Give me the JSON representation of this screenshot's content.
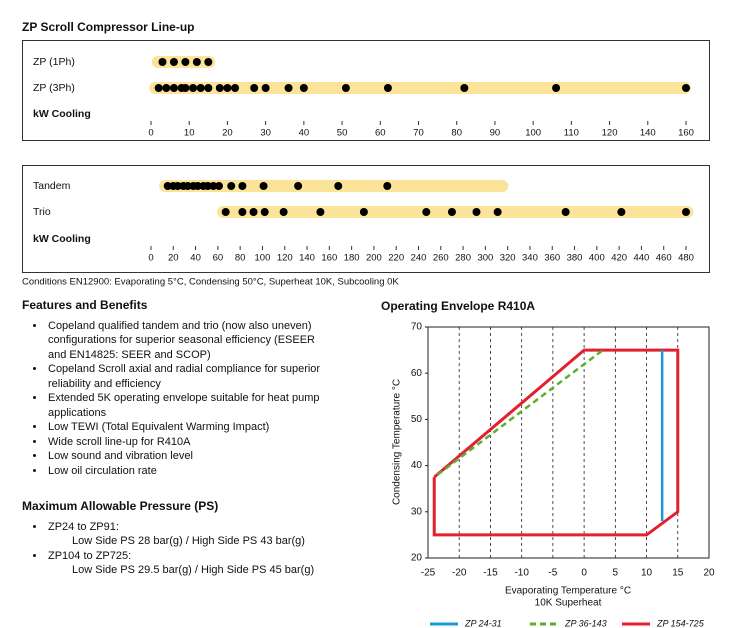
{
  "chart_data": [
    {
      "type": "dot",
      "title": "ZP Scroll Compressor Line-up",
      "x_label": "kW Cooling",
      "xlim": [
        0,
        160
      ],
      "xticks": [
        0,
        10,
        20,
        30,
        40,
        50,
        60,
        70,
        80,
        90,
        100,
        110,
        120,
        140,
        160
      ],
      "bar_color": "#fbe49a",
      "dot_color": "#000000",
      "series": [
        {
          "name": "ZP (1Ph)",
          "range": [
            1,
            16
          ],
          "values": [
            3,
            6,
            9,
            12,
            15
          ]
        },
        {
          "name": "ZP (3Ph)",
          "range": [
            0.3,
            161
          ],
          "values": [
            2,
            4,
            6,
            8,
            9,
            11,
            13,
            15,
            18,
            20,
            22,
            27,
            30,
            36,
            40,
            51,
            62,
            82,
            106,
            160
          ]
        }
      ]
    },
    {
      "type": "dot",
      "x_label": "kW Cooling",
      "xlim": [
        0,
        480
      ],
      "xticks": [
        0,
        20,
        40,
        60,
        80,
        100,
        120,
        140,
        160,
        180,
        200,
        220,
        240,
        260,
        280,
        300,
        320,
        340,
        360,
        380,
        400,
        420,
        440,
        460,
        480
      ],
      "bar_color": "#fbe49a",
      "dot_color": "#000000",
      "series": [
        {
          "name": "Tandem",
          "range": [
            10,
            318
          ],
          "values": [
            15,
            20,
            24,
            29,
            33,
            38,
            42,
            47,
            51,
            56,
            61,
            72,
            82,
            101,
            132,
            168,
            212
          ]
        },
        {
          "name": "Trio",
          "range": [
            62,
            484
          ],
          "values": [
            67,
            82,
            92,
            102,
            119,
            152,
            191,
            247,
            270,
            292,
            311,
            372,
            422,
            480
          ]
        }
      ]
    },
    {
      "type": "line",
      "title": "Operating Envelope R410A",
      "x_label": "Evaporating Temperature °C",
      "x_sublabel": "10K Superheat",
      "y_label": "Condensing Temperature °C",
      "xlim": [
        -25,
        20
      ],
      "xticks": [
        -25,
        -20,
        -15,
        -10,
        -5,
        0,
        5,
        10,
        15,
        20
      ],
      "ylim": [
        20,
        70
      ],
      "yticks": [
        20,
        30,
        40,
        50,
        60,
        70
      ],
      "grid": "x",
      "series": [
        {
          "name": "ZP 24-31",
          "color": "#1a9ad6",
          "dashed": false,
          "x": [
            12.5,
            12.5
          ],
          "values": [
            65,
            28
          ]
        },
        {
          "name": "ZP 36-143",
          "color": "#5ab031",
          "dashed": true,
          "x": [
            -23.5,
            3
          ],
          "values": [
            38,
            65
          ]
        },
        {
          "name": "ZP 154-725",
          "color": "#e3202f",
          "dashed": false,
          "x": [
            -24,
            -24,
            10,
            15,
            15,
            0,
            -24
          ],
          "values": [
            37.5,
            25,
            25,
            30,
            65,
            65,
            37.5
          ]
        }
      ]
    }
  ],
  "footnote": "Conditions EN12900: Evaporating 5°C, Condensing 50°C, Superheat 10K, Subcooling 0K",
  "features": {
    "title": "Features and Benefits",
    "items": [
      "Copeland qualified tandem and trio (now also uneven) configurations for superior seasonal efficiency (ESEER and EN14825: SEER and SCOP)",
      "Copeland Scroll axial and radial compliance for superior reliability and efficiency",
      "Extended 5K operating envelope suitable for heat pump applications",
      "Low TEWI (Total Equivalent Warming Impact)",
      "Wide scroll line-up for R410A",
      "Low sound and vibration level",
      "Low oil circulation rate"
    ]
  },
  "pressure": {
    "title": "Maximum Allowable Pressure (PS)",
    "items": [
      {
        "label": "ZP24 to ZP91:",
        "detail": "Low Side PS 28 bar(g) / High Side PS 43 bar(g)"
      },
      {
        "label": "ZP104 to ZP725:",
        "detail": "Low Side PS 29.5 bar(g) / High Side PS 45 bar(g)"
      }
    ]
  }
}
